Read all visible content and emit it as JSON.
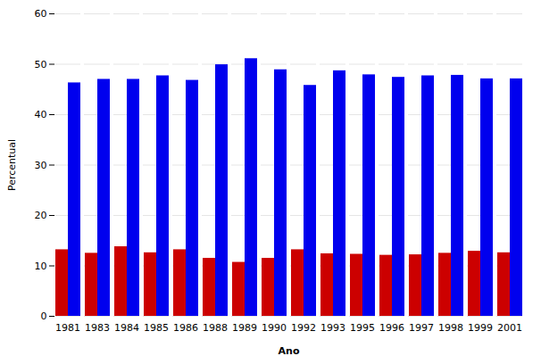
{
  "chart_data": {
    "type": "bar",
    "categories": [
      "1981",
      "1983",
      "1984",
      "1985",
      "1986",
      "1988",
      "1989",
      "1990",
      "1992",
      "1993",
      "1995",
      "1996",
      "1997",
      "1998",
      "1999",
      "2001"
    ],
    "series": [
      {
        "color": "#CC0000",
        "values": [
          13.2,
          12.5,
          13.8,
          12.6,
          13.2,
          11.5,
          10.7,
          11.5,
          13.2,
          12.4,
          12.3,
          12.1,
          12.2,
          12.5,
          12.9,
          12.6
        ]
      },
      {
        "color": "#0000EE",
        "values": [
          46.3,
          47.0,
          47.0,
          47.7,
          46.8,
          49.9,
          51.1,
          48.9,
          45.8,
          48.7,
          47.9,
          47.4,
          47.7,
          47.8,
          47.1,
          47.1
        ]
      }
    ],
    "xlabel": "Ano",
    "ylabel": "Percentual",
    "ylim": [
      0,
      60
    ],
    "yticks": [
      0,
      10,
      20,
      30,
      40,
      50,
      60
    ],
    "grid": true
  }
}
